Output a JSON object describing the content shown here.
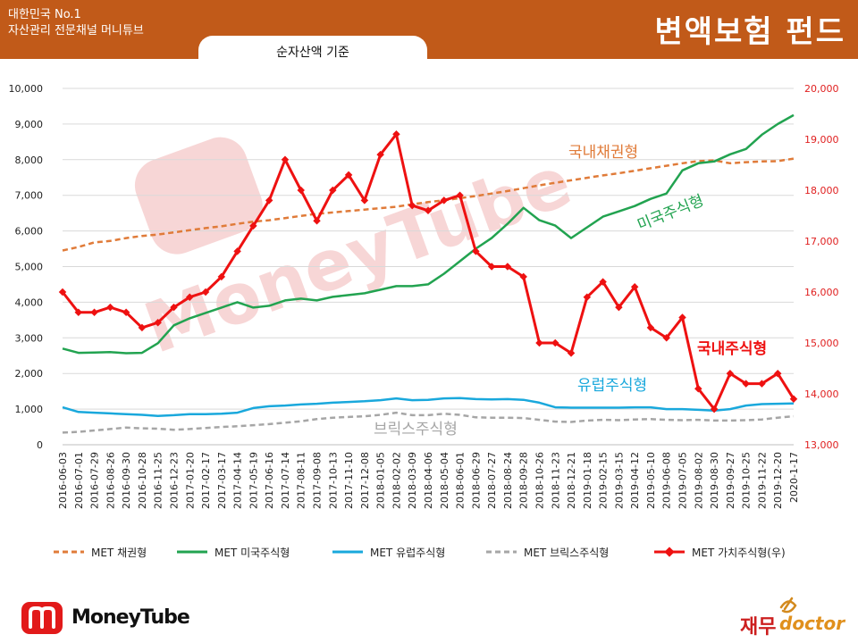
{
  "header": {
    "brand_line1": "대한민국 No.1",
    "brand_line2": "자산관리 전문채널 머니튜브",
    "title": "변액보험 펀드",
    "basis_label": "순자산액 기준"
  },
  "watermark": "MoneyTube",
  "footer": {
    "logo_text": "MoneyTube",
    "doctor_ko": "재무",
    "doctor_en": "doctor"
  },
  "colors": {
    "banner": "#c15a19",
    "bond": "#e07b39",
    "us": "#22a350",
    "eu": "#19a8dc",
    "brics": "#a6a6a6",
    "value": "#ee1111",
    "watermark": "#ea8d8d"
  },
  "chart_data": {
    "type": "line",
    "x": [
      "2016-06-03",
      "2016-07-01",
      "2016-07-29",
      "2016-08-26",
      "2016-09-30",
      "2016-10-28",
      "2016-11-25",
      "2016-12-23",
      "2017-01-20",
      "2017-02-17",
      "2017-03-17",
      "2017-04-14",
      "2017-05-19",
      "2017-06-16",
      "2017-07-14",
      "2017-08-11",
      "2017-09-08",
      "2017-10-13",
      "2017-11-10",
      "2017-12-08",
      "2018-01-05",
      "2018-02-02",
      "2018-03-09",
      "2018-04-06",
      "2018-05-04",
      "2018-06-01",
      "2018-06-29",
      "2018-07-27",
      "2018-08-24",
      "2018-09-28",
      "2018-10-26",
      "2018-11-23",
      "2018-12-21",
      "2019-01-18",
      "2019-02-15",
      "2019-03-15",
      "2019-04-12",
      "2019-05-10",
      "2019-06-08",
      "2019-07-05",
      "2019-08-02",
      "2019-08-30",
      "2019-09-27",
      "2019-10-25",
      "2019-11-22",
      "2019-12-20",
      "2020-1-17"
    ],
    "x_tick_labels": [
      "2016-06-03",
      "2016-07-01",
      "2016-07-29",
      "2016-08-26",
      "2016-09-30",
      "2016-10-28",
      "2016-11-25",
      "2016-12-23",
      "2017-01-20",
      "2017-02-17",
      "2017-03-17",
      "2017-04-14",
      "2017-05-19",
      "2017-06-16",
      "2017-07-14",
      "2017-08-11",
      "2017-09-08",
      "2017-10-13",
      "2017-11-10",
      "2017-12-08",
      "2018-01-05",
      "2018-02-02",
      "2018-03-09",
      "2018-04-06",
      "2018-05-04",
      "2018-06-01",
      "2018-06-29",
      "2018-07-27",
      "2018-08-24",
      "2018-09-28",
      "2018-10-26",
      "2018-11-23",
      "2018-12-21",
      "2019-01-18",
      "2019-02-15",
      "2019-03-15",
      "2019-04-12",
      "2019-05-10",
      "2019-06-08",
      "2019-07-05",
      "2019-08-02",
      "2019-08-30",
      "2019-09-27",
      "2019-10-25",
      "2019-11-22",
      "2019-12-20",
      "2020-1-17"
    ],
    "y_left": {
      "ylim": [
        0,
        10000
      ],
      "ticks": [
        0,
        1000,
        2000,
        3000,
        4000,
        5000,
        6000,
        7000,
        8000,
        9000,
        10000
      ],
      "tick_labels": [
        "0",
        "1,000",
        "2,000",
        "3,000",
        "4,000",
        "5,000",
        "6,000",
        "7,000",
        "8,000",
        "9,000",
        "10,000"
      ]
    },
    "y_right": {
      "ylim": [
        13000,
        20000
      ],
      "ticks": [
        13000,
        14000,
        15000,
        16000,
        17000,
        18000,
        19000,
        20000
      ],
      "tick_labels": [
        "13,000",
        "14,000",
        "15,000",
        "16,000",
        "17,000",
        "18,000",
        "19,000",
        "20,000"
      ]
    },
    "grid": true,
    "legend_position": "bottom",
    "series": [
      {
        "key": "bond",
        "name": "MET 채권형",
        "axis": "left",
        "style": "dashed",
        "color": "#e07b39",
        "annotation": "국내채권형",
        "values": [
          5450,
          5550,
          5680,
          5720,
          5800,
          5860,
          5900,
          5960,
          6020,
          6080,
          6130,
          6200,
          6260,
          6300,
          6360,
          6420,
          6480,
          6520,
          6560,
          6600,
          6640,
          6680,
          6750,
          6810,
          6860,
          6920,
          6980,
          7050,
          7120,
          7200,
          7280,
          7350,
          7420,
          7490,
          7560,
          7620,
          7690,
          7760,
          7830,
          7900,
          7960,
          7980,
          7900,
          7930,
          7950,
          7960,
          8030
        ]
      },
      {
        "key": "us",
        "name": "MET 미국주식형",
        "axis": "left",
        "style": "solid",
        "color": "#22a350",
        "annotation": "미국주식형",
        "values": [
          2700,
          2580,
          2590,
          2600,
          2570,
          2580,
          2850,
          3350,
          3550,
          3700,
          3850,
          4000,
          3850,
          3900,
          4050,
          4100,
          4050,
          4150,
          4200,
          4250,
          4350,
          4450,
          4450,
          4500,
          4800,
          5150,
          5500,
          5800,
          6200,
          6650,
          6300,
          6150,
          5800,
          6100,
          6400,
          6550,
          6700,
          6900,
          7050,
          7700,
          7900,
          7950,
          8150,
          8300,
          8700,
          9000,
          9250
        ]
      },
      {
        "key": "eu",
        "name": "MET 유럽주식형",
        "axis": "left",
        "style": "solid",
        "color": "#19a8dc",
        "annotation": "유럽주식형",
        "values": [
          1050,
          920,
          900,
          880,
          860,
          840,
          810,
          830,
          860,
          860,
          870,
          900,
          1030,
          1080,
          1100,
          1130,
          1150,
          1180,
          1200,
          1220,
          1250,
          1300,
          1250,
          1260,
          1300,
          1310,
          1280,
          1270,
          1280,
          1260,
          1180,
          1050,
          1040,
          1040,
          1040,
          1040,
          1050,
          1050,
          1000,
          1000,
          980,
          960,
          1000,
          1100,
          1140,
          1150,
          1160
        ]
      },
      {
        "key": "brics",
        "name": "MET 브릭스주식형",
        "axis": "left",
        "style": "dashed",
        "color": "#a6a6a6",
        "annotation": "브릭스주식형",
        "values": [
          340,
          360,
          400,
          440,
          480,
          460,
          450,
          420,
          440,
          470,
          500,
          520,
          550,
          580,
          620,
          660,
          720,
          760,
          780,
          800,
          840,
          900,
          830,
          830,
          870,
          840,
          770,
          760,
          760,
          750,
          700,
          650,
          640,
          680,
          700,
          690,
          710,
          720,
          700,
          690,
          700,
          680,
          680,
          690,
          710,
          760,
          800
        ]
      },
      {
        "key": "value",
        "name": "MET 가치주식형(우)",
        "axis": "right",
        "style": "solid-markers",
        "color": "#ee1111",
        "annotation": "국내주식형",
        "values": [
          16000,
          15600,
          15600,
          15700,
          15600,
          15300,
          15400,
          15700,
          15900,
          16000,
          16300,
          16800,
          17300,
          17800,
          18600,
          18000,
          17400,
          18000,
          18300,
          17800,
          18700,
          19100,
          17700,
          17600,
          17800,
          17900,
          16800,
          16500,
          16500,
          16300,
          15000,
          15000,
          14800,
          15900,
          16200,
          15700,
          16100,
          15300,
          15100,
          15500,
          14100,
          13700,
          14400,
          14200,
          14200,
          14400,
          13900
        ]
      }
    ]
  }
}
